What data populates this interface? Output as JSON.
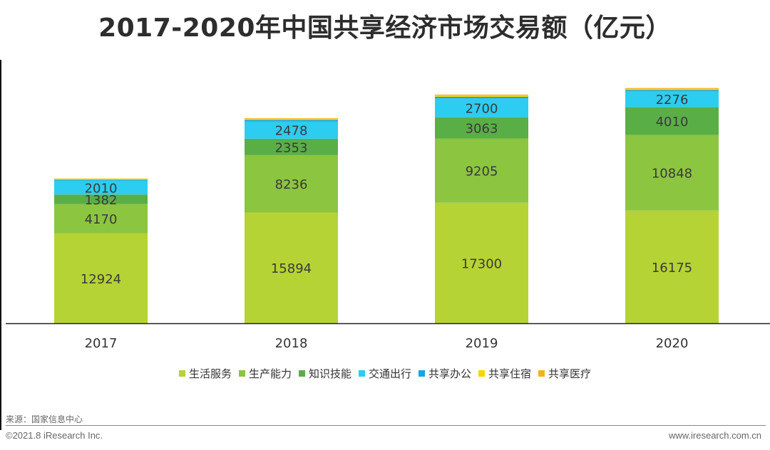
{
  "page": {
    "source": "来源：国家信息中心",
    "copyright": "©2021.8 iResearch Inc.",
    "website": "www.iresearch.com.cn"
  },
  "chart_data": {
    "type": "bar",
    "stacked": true,
    "title": "2017-2020年中国共享经济市场交易额（亿元）",
    "xlabel": "",
    "ylabel": "",
    "categories": [
      "2017",
      "2018",
      "2019",
      "2020"
    ],
    "legend_position": "bottom",
    "grid": false,
    "series": [
      {
        "name": "生活服务",
        "color": "#b5d334",
        "values": [
          12924,
          15894,
          17300,
          16175
        ],
        "labeled": true
      },
      {
        "name": "生产能力",
        "color": "#8cc540",
        "values": [
          4170,
          8236,
          9205,
          10848
        ],
        "labeled": true
      },
      {
        "name": "知识技能",
        "color": "#5aae46",
        "values": [
          1382,
          2353,
          3063,
          4010
        ],
        "labeled": true
      },
      {
        "name": "交通出行",
        "color": "#2ccdf0",
        "values": [
          2010,
          2478,
          2700,
          2276
        ],
        "labeled": true
      },
      {
        "name": "共享办公",
        "color": "#14a5e3",
        "values": [
          110,
          227,
          227,
          168
        ],
        "labeled": false
      },
      {
        "name": "共享住宿",
        "color": "#fbd400",
        "values": [
          120,
          165,
          225,
          152
        ],
        "labeled": false
      },
      {
        "name": "共享医疗",
        "color": "#f6b21b",
        "values": [
          56,
          88,
          108,
          138
        ],
        "labeled": false
      }
    ]
  }
}
